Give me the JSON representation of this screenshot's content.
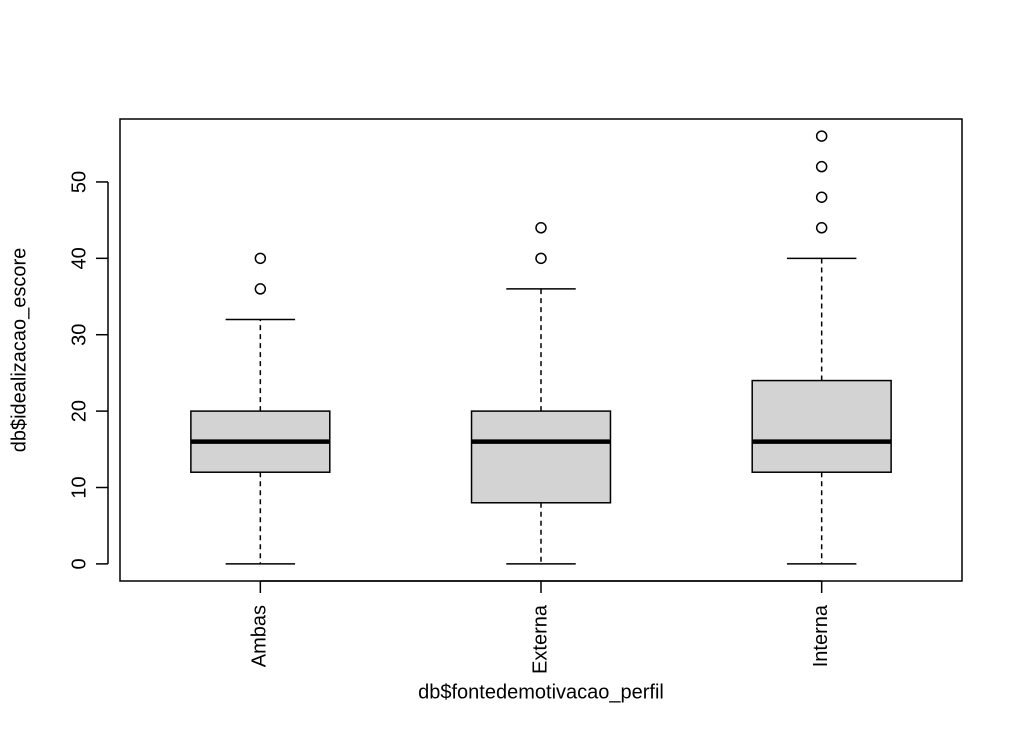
{
  "chart_data": {
    "type": "boxplot",
    "x_label": "db$fontedemotivacao_perfil",
    "y_label": "db$idealizacao_escore",
    "categories": [
      "Ambas",
      "Externa",
      "Interna"
    ],
    "stats": [
      {
        "min": 0,
        "q1": 12,
        "median": 16,
        "q3": 20,
        "max": 32,
        "outliers": [
          36,
          40
        ]
      },
      {
        "min": 0,
        "q1": 8,
        "median": 16,
        "q3": 20,
        "max": 36,
        "outliers": [
          40,
          44
        ]
      },
      {
        "min": 0,
        "q1": 12,
        "median": 16,
        "q3": 24,
        "max": 40,
        "outliers": [
          44,
          48,
          52,
          56
        ]
      }
    ],
    "color": "#d3d3d3",
    "ylim": [
      -2.24,
      58.24
    ],
    "yticks": [
      0,
      10,
      20,
      30,
      40,
      50
    ],
    "grid": false
  }
}
